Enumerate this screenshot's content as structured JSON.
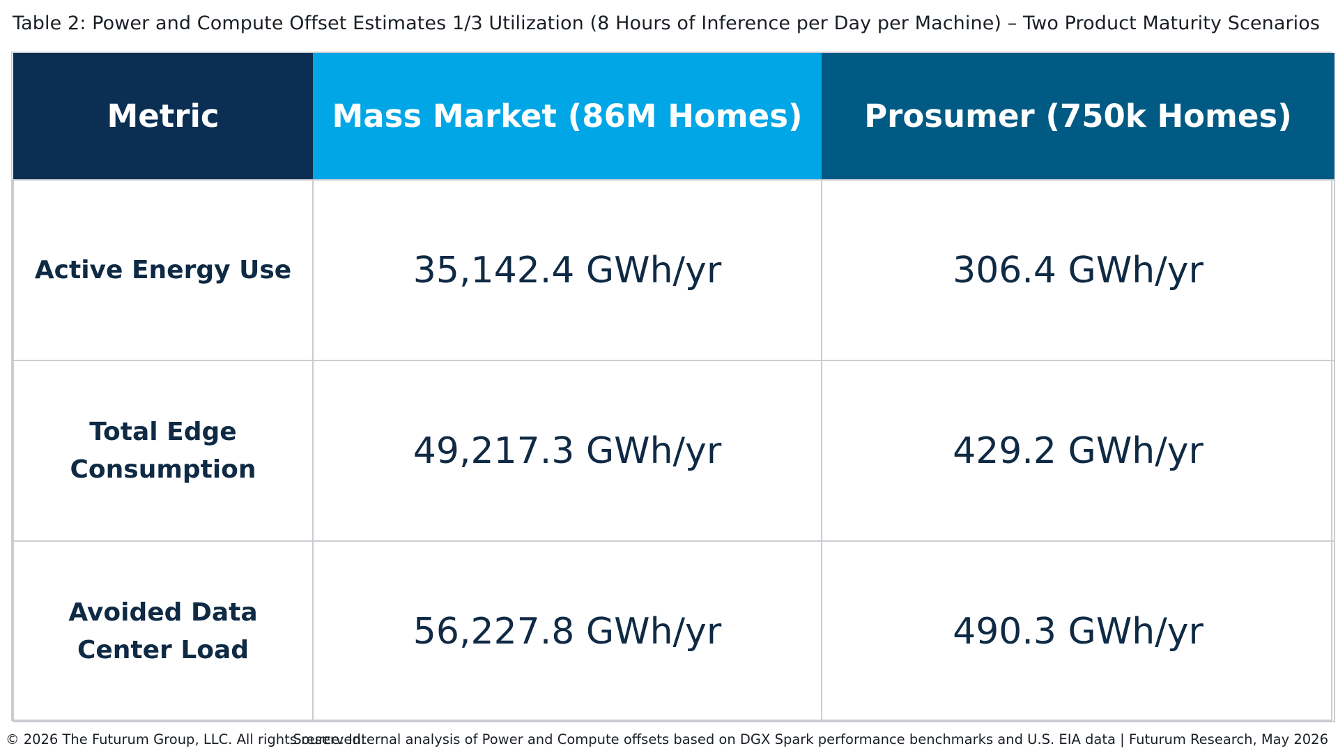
{
  "caption": "Table 2: Power and Compute Offset Estimates 1/3 Utilization (8 Hours of Inference per Day per Machine) – Two Product Maturity Scenarios",
  "table": {
    "headers": {
      "metric": "Metric",
      "mass_market": "Mass Market (86M Homes)",
      "prosumer": "Prosumer (750k Homes)"
    },
    "header_colors": {
      "metric": "#0b2f53",
      "mass_market": "#00a6e6",
      "prosumer": "#005a84"
    },
    "rows": [
      {
        "metric": "Active Energy Use",
        "mass_market": "35,142.4 GWh/yr",
        "prosumer": "306.4 GWh/yr"
      },
      {
        "metric": "Total Edge Consumption",
        "mass_market": "49,217.3 GWh/yr",
        "prosumer": "429.2 GWh/yr"
      },
      {
        "metric": "Avoided Data Center Load",
        "mass_market": "56,227.8 GWh/yr",
        "prosumer": "490.3 GWh/yr"
      }
    ]
  },
  "footer": {
    "copyright": "© 2026 The Futurum Group, LLC. All rights reserved.",
    "source": "Source: Internal analysis of Power and Compute offsets based on DGX Spark performance benchmarks and U.S. EIA data | Futurum Research, May 2026"
  }
}
